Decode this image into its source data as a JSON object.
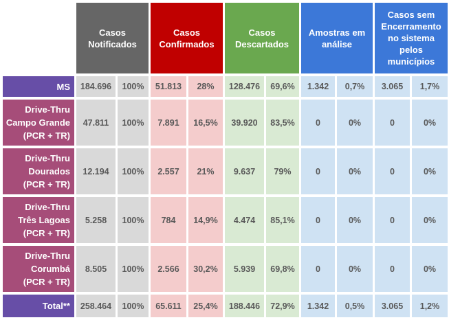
{
  "headers": [
    {
      "label": "Casos\nNotificados",
      "color": "#666666"
    },
    {
      "label": "Casos\nConfirmados",
      "color": "#c00000"
    },
    {
      "label": "Casos\nDescartados",
      "color": "#6aa84f"
    },
    {
      "label": "Amostras em\nanálise",
      "color": "#3c78d8"
    },
    {
      "label": "Casos sem\nEncerramento\nno sistema\npelos\nmunicípios",
      "color": "#3c78d8"
    }
  ],
  "rows": [
    {
      "label": "MS",
      "type": "ms",
      "values": [
        "184.696",
        "100%",
        "51.813",
        "28%",
        "128.476",
        "69,6%",
        "1.342",
        "0,7%",
        "3.065",
        "1,7%"
      ]
    },
    {
      "label": "Drive-Thru\nCampo Grande\n(PCR + TR)",
      "type": "dt",
      "values": [
        "47.811",
        "100%",
        "7.891",
        "16,5%",
        "39.920",
        "83,5%",
        "0",
        "0%",
        "0",
        "0%"
      ]
    },
    {
      "label": "Drive-Thru\nDourados\n(PCR + TR)",
      "type": "dt",
      "values": [
        "12.194",
        "100%",
        "2.557",
        "21%",
        "9.637",
        "79%",
        "0",
        "0%",
        "0",
        "0%"
      ]
    },
    {
      "label": "Drive-Thru\nTrês Lagoas\n(PCR + TR)",
      "type": "dt",
      "values": [
        "5.258",
        "100%",
        "784",
        "14,9%",
        "4.474",
        "85,1%",
        "0",
        "0%",
        "0",
        "0%"
      ]
    },
    {
      "label": "Drive-Thru\nCorumbá\n(PCR + TR)",
      "type": "dt",
      "values": [
        "8.505",
        "100%",
        "2.566",
        "30,2%",
        "5.939",
        "69,8%",
        "0",
        "0%",
        "0",
        "0%"
      ]
    },
    {
      "label": "Total**",
      "type": "ms",
      "values": [
        "258.464",
        "100%",
        "65.611",
        "25,4%",
        "188.446",
        "72,9%",
        "1.342",
        "0,5%",
        "3.065",
        "1,2%"
      ]
    }
  ]
}
